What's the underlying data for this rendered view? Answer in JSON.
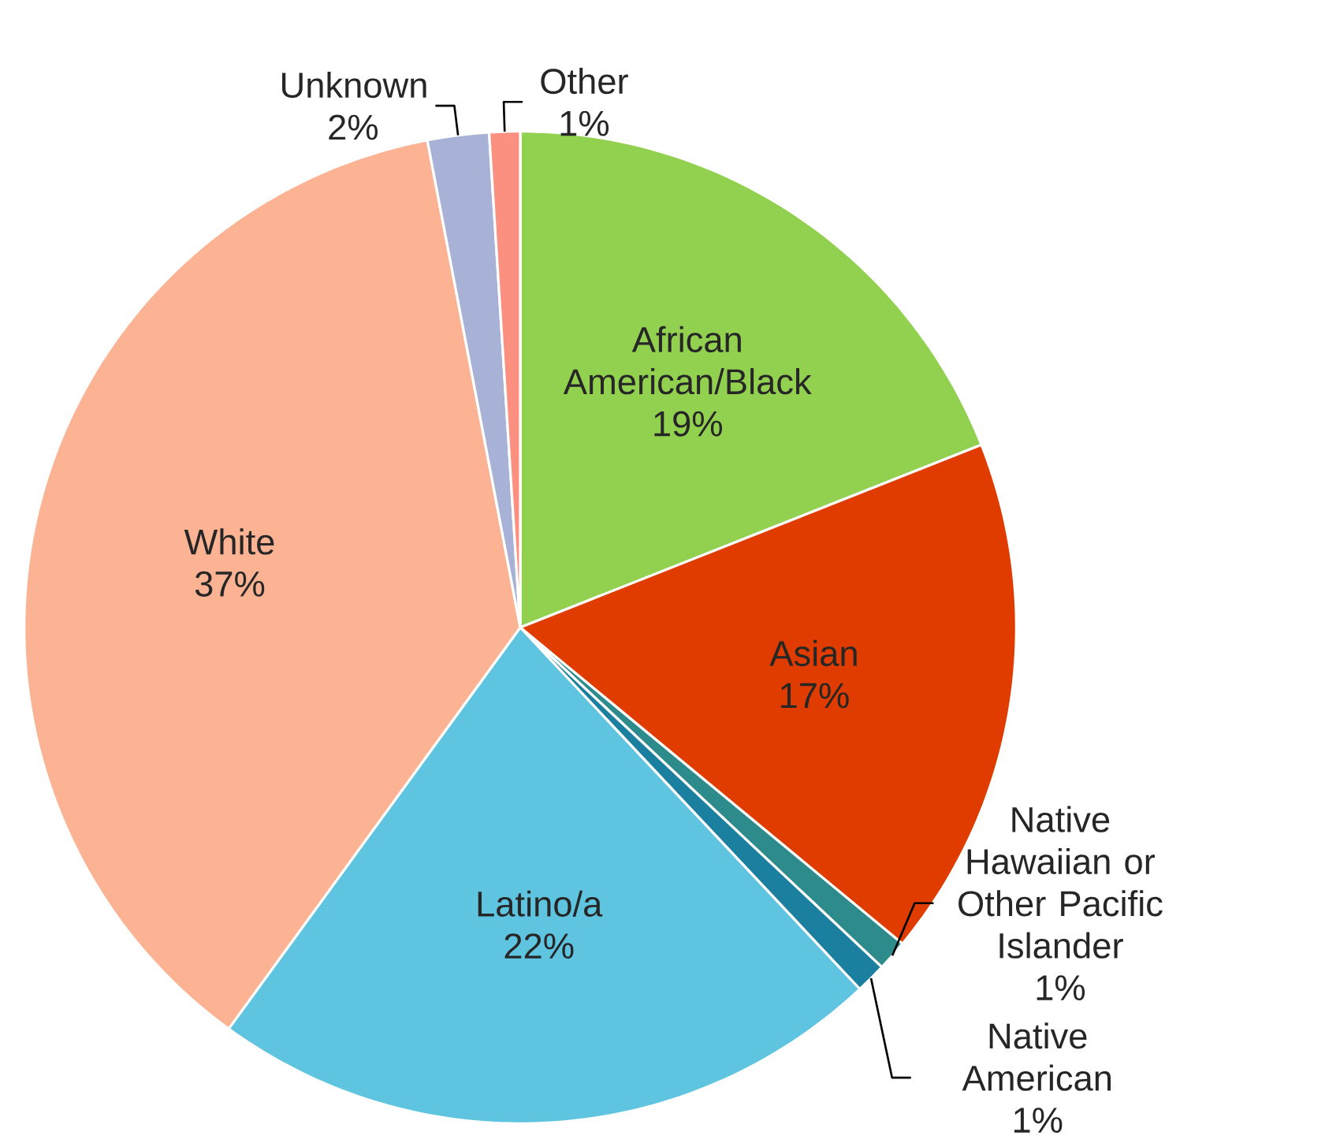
{
  "chart_data": {
    "type": "pie",
    "categories": [
      "African American/Black",
      "Asian",
      "Native Hawaiian or Other Pacific Islander",
      "Native American",
      "Latino/a",
      "White",
      "Unknown",
      "Other"
    ],
    "values": [
      19,
      17,
      1,
      1,
      22,
      37,
      2,
      1
    ],
    "value_labels": [
      "19%",
      "17%",
      "1%",
      "1%",
      "22%",
      "37%",
      "2%",
      "1%"
    ],
    "colors": [
      "#92d050",
      "#e03c00",
      "#2e8b8b",
      "#1b7f9f",
      "#5fc4e0",
      "#fbb394",
      "#a7b2d6",
      "#fb8f80"
    ],
    "legend": false
  }
}
